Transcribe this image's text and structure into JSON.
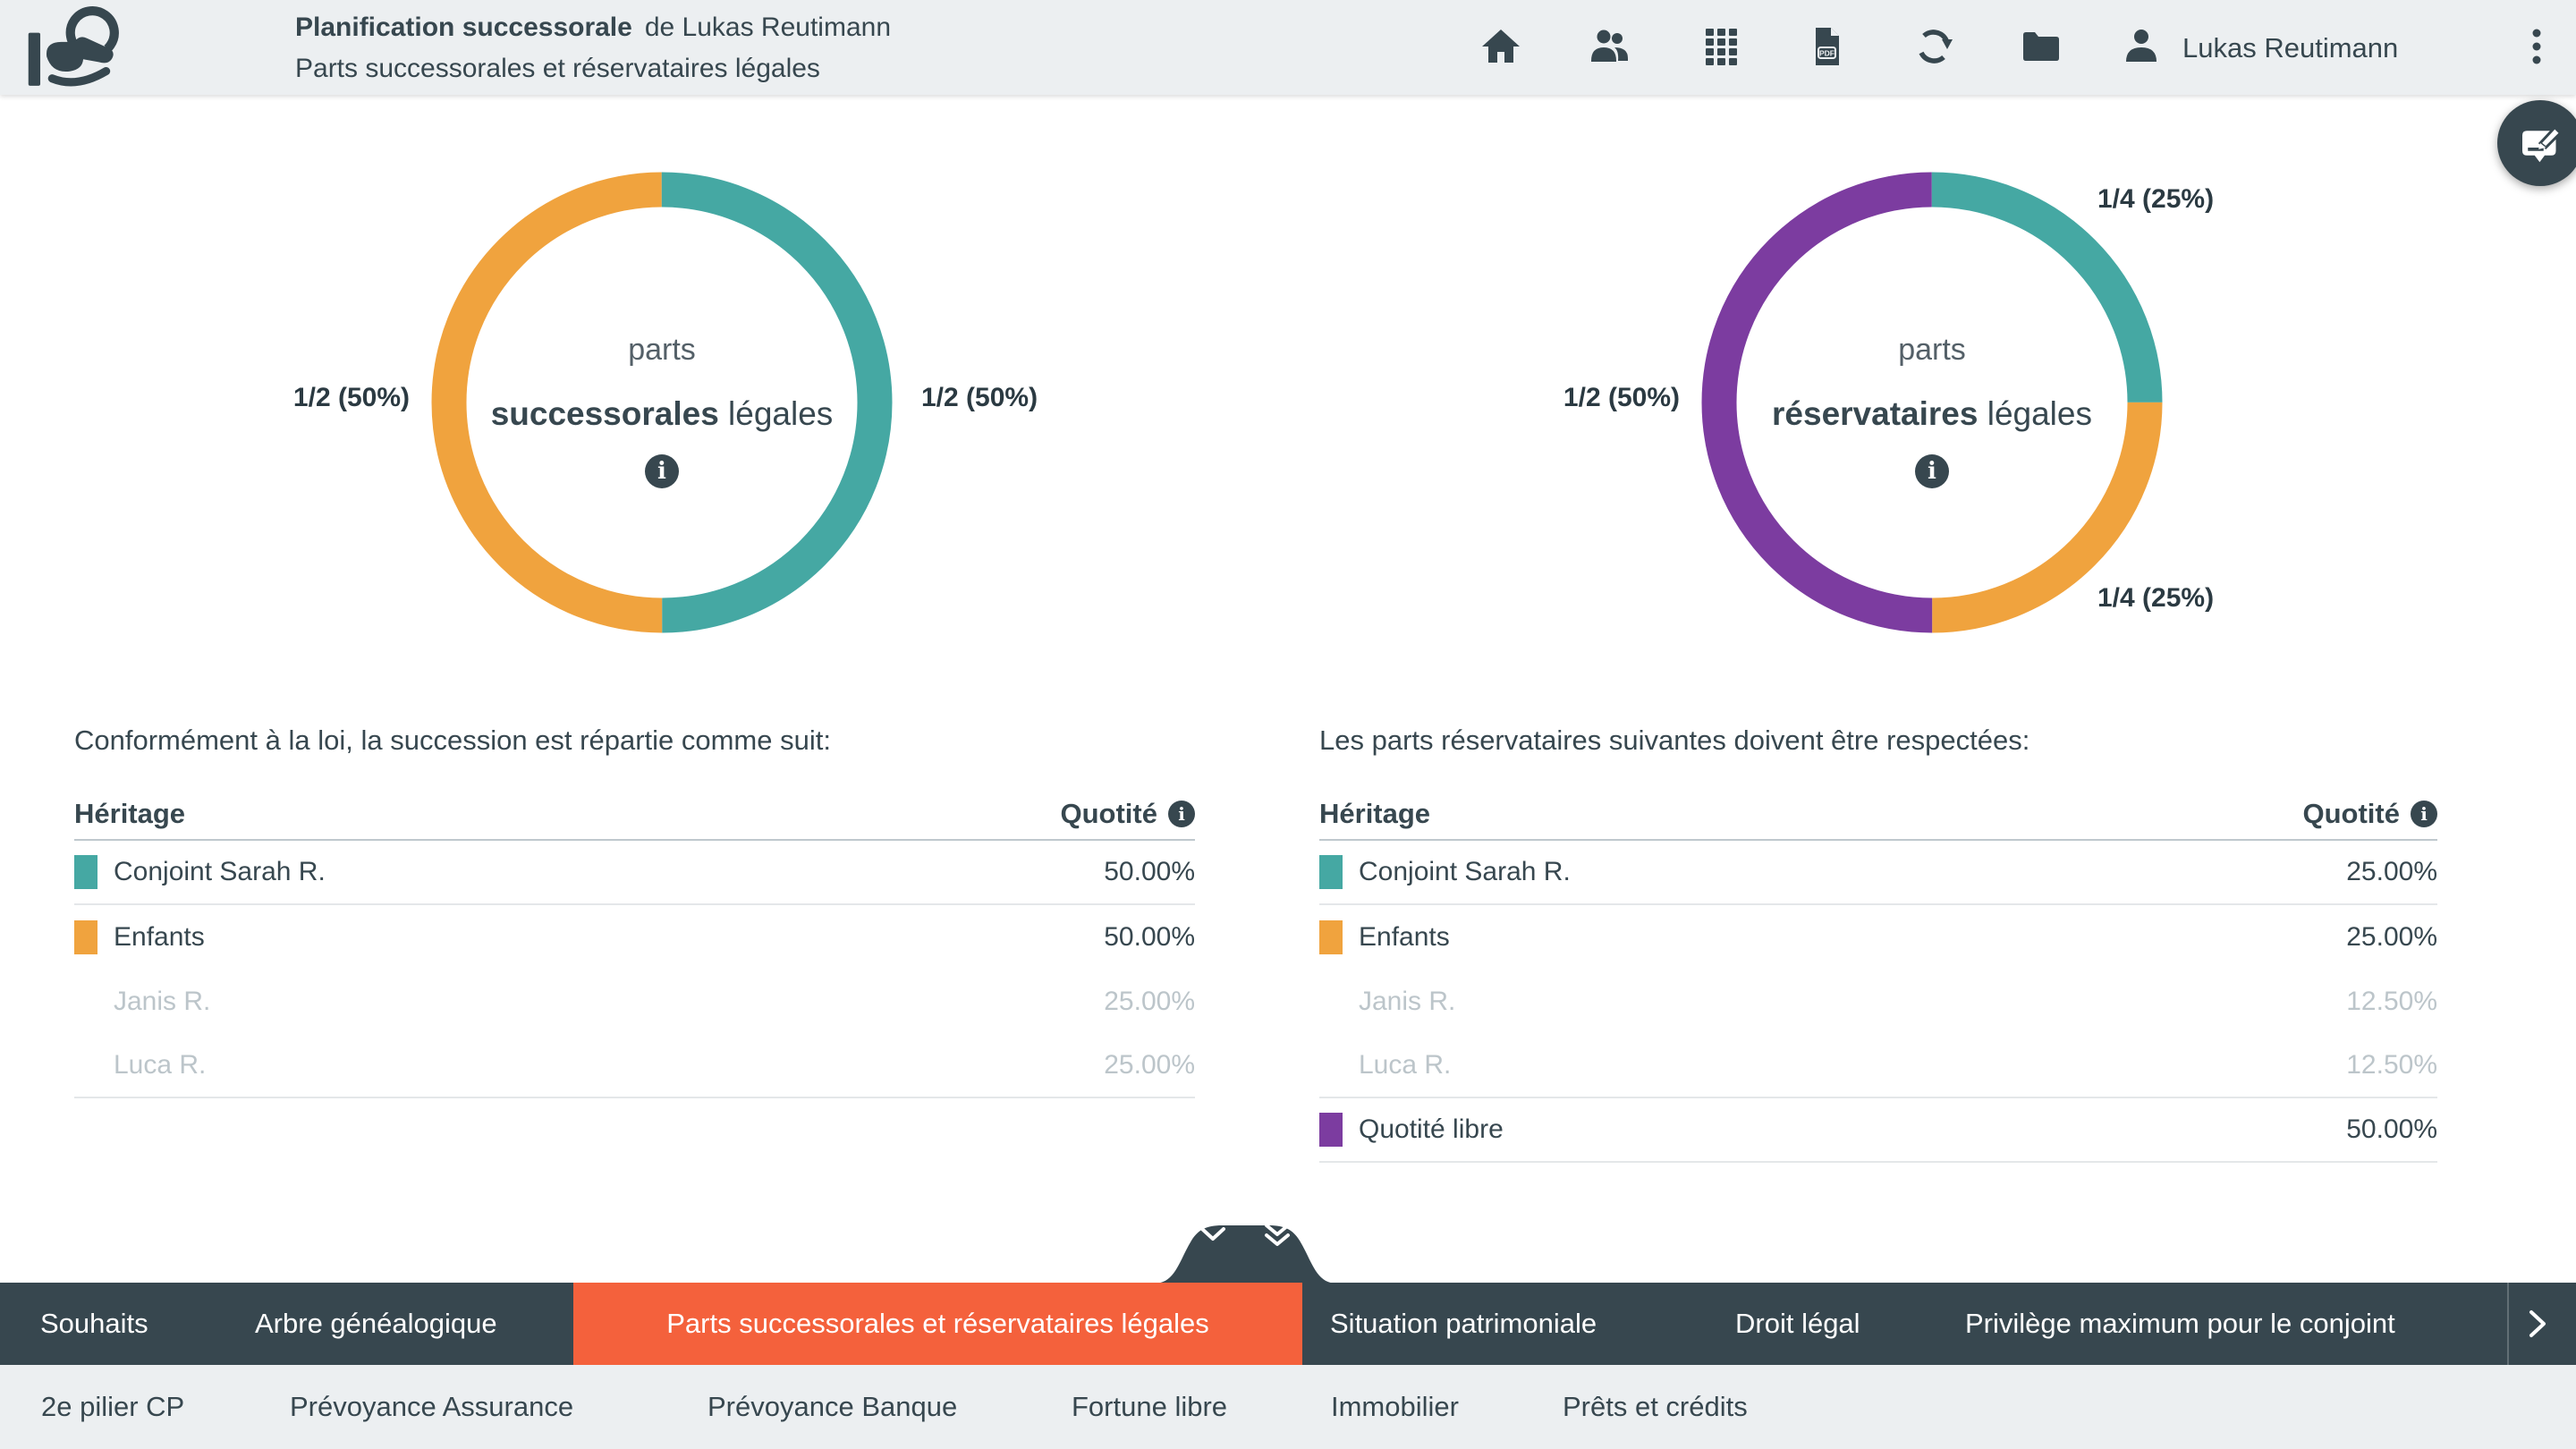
{
  "header": {
    "title_bold": "Planification successorale",
    "title_rest": "de Lukas Reutimann",
    "subtitle": "Parts successorales et réservataires légales",
    "user_name": "Lukas Reutimann",
    "toolbar_icons": [
      "home",
      "people",
      "grid",
      "pdf-document",
      "sync",
      "folder",
      "user",
      "kebab-menu"
    ]
  },
  "colors": {
    "dark_slate": "#37474F",
    "teal": "#45A8A3",
    "orange": "#F0A33E",
    "purple": "#7C3CA0",
    "active_tab": "#F4613C",
    "muted_text": "#BCC5CA",
    "header_bg": "#ECEFF1"
  },
  "chart_data": [
    {
      "type": "pie",
      "subtype": "donut",
      "center_top": "parts",
      "center_bold": "successorales",
      "center_rest": " légales",
      "segments": [
        {
          "name": "Conjoint Sarah R.",
          "value": 50,
          "label": "1/2 (50%)",
          "color": "#45A8A3",
          "label_side": "right"
        },
        {
          "name": "Enfants",
          "value": 50,
          "label": "1/2 (50%)",
          "color": "#F0A33E",
          "label_side": "left"
        }
      ]
    },
    {
      "type": "pie",
      "subtype": "donut",
      "center_top": "parts",
      "center_bold": "réservataires",
      "center_rest": " légales",
      "segments": [
        {
          "name": "Conjoint Sarah R.",
          "value": 25,
          "label": "1/4 (25%)",
          "color": "#45A8A3",
          "label_side": "top-right"
        },
        {
          "name": "Enfants",
          "value": 25,
          "label": "1/4 (25%)",
          "color": "#F0A33E",
          "label_side": "bottom-right"
        },
        {
          "name": "Quotité libre",
          "value": 50,
          "label": "1/2 (50%)",
          "color": "#7C3CA0",
          "label_side": "left"
        }
      ]
    }
  ],
  "left_panel": {
    "intro": "Conformément à la loi, la succession est répartie comme suit:",
    "col_heir": "Héritage",
    "col_share": "Quotité",
    "rows": [
      {
        "label": "Conjoint Sarah R.",
        "value": "50.00%"
      },
      {
        "label": "Enfants",
        "value": "50.00%"
      },
      {
        "label": "Janis R.",
        "value": "25.00%"
      },
      {
        "label": "Luca R.",
        "value": "25.00%"
      }
    ]
  },
  "right_panel": {
    "intro": "Les parts réservataires suivantes doivent être respectées:",
    "col_heir": "Héritage",
    "col_share": "Quotité",
    "rows": [
      {
        "label": "Conjoint Sarah R.",
        "value": "25.00%"
      },
      {
        "label": "Enfants",
        "value": "25.00%"
      },
      {
        "label": "Janis R.",
        "value": "12.50%"
      },
      {
        "label": "Luca R.",
        "value": "12.50%"
      },
      {
        "label": "Quotité libre",
        "value": "50.00%"
      }
    ]
  },
  "bottom_nav": {
    "primary": [
      "Souhaits",
      "Arbre généalogique",
      "Parts successorales et réservataires légales",
      "Situation patrimoniale",
      "Droit légal",
      "Privilège maximum pour le conjoint"
    ],
    "active": "Parts successorales et réservataires légales",
    "secondary": [
      "2e pilier CP",
      "Prévoyance Assurance",
      "Prévoyance Banque",
      "Fortune libre",
      "Immobilier",
      "Prêts et crédits"
    ]
  }
}
